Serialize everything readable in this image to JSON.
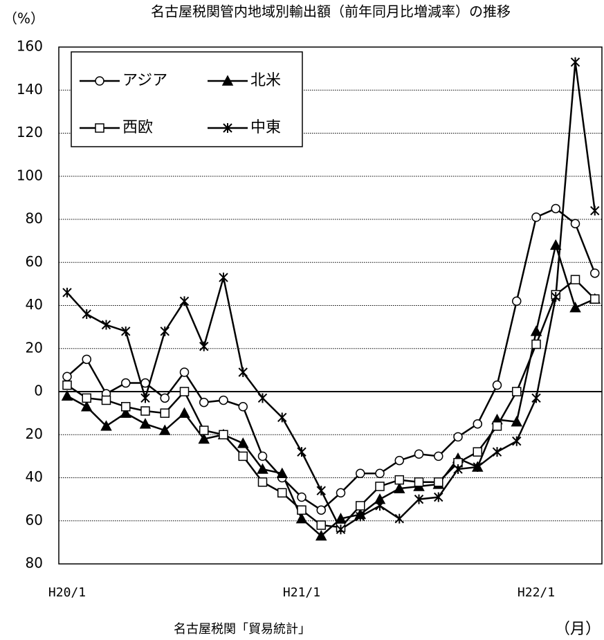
{
  "chart_data": {
    "type": "line",
    "title": "名古屋税関管内地域別輸出額（前年同月比増減率）の推移",
    "y_label": "（%）",
    "x_label": "（月）",
    "source": "名古屋税関「貿易統計」",
    "categories": [
      "H20/1",
      null,
      null,
      null,
      null,
      null,
      null,
      null,
      null,
      null,
      null,
      null,
      "H21/1",
      null,
      null,
      null,
      null,
      null,
      null,
      null,
      null,
      null,
      null,
      null,
      "H22/1",
      null,
      null,
      null
    ],
    "ylim": [
      -80,
      160
    ],
    "yticks": [
      {
        "value": -80,
        "label": "80"
      },
      {
        "value": -60,
        "label": "60"
      },
      {
        "value": -40,
        "label": "40"
      },
      {
        "value": -20,
        "label": "20"
      },
      0,
      20,
      40,
      60,
      80,
      100,
      120,
      140,
      160
    ],
    "grid": true,
    "legend": "upper left",
    "series": [
      {
        "name": "アジア",
        "color": "#000000",
        "marker": "circle",
        "values": [
          7,
          15,
          -1,
          4,
          4,
          -3,
          9,
          -5,
          -4,
          -7,
          -30,
          -40,
          -49,
          -55,
          -47,
          -38,
          -38,
          -32,
          -29,
          -30,
          -21,
          -15,
          3,
          42,
          81,
          85,
          78,
          55
        ]
      },
      {
        "name": "北米",
        "color": "#000000",
        "marker": "triangle",
        "values": [
          -2,
          -7,
          -16,
          -10,
          -15,
          -18,
          -10,
          -22,
          -20,
          -24,
          -36,
          -38,
          -59,
          -67,
          -59,
          -57,
          -50,
          -45,
          -44,
          -43,
          -31,
          -35,
          -13,
          -14,
          28,
          68,
          39,
          43
        ]
      },
      {
        "name": "西欧",
        "color": "#000000",
        "marker": "square",
        "values": [
          3,
          -3,
          -4,
          -7,
          -9,
          -10,
          0,
          -18,
          -20,
          -30,
          -42,
          -47,
          -55,
          -62,
          -63,
          -53,
          -44,
          -41,
          -42,
          -42,
          -33,
          -28,
          -16,
          0,
          22,
          45,
          52,
          43
        ]
      },
      {
        "name": "中東",
        "color": "#000000",
        "marker": "asterisk",
        "values": [
          46,
          36,
          31,
          28,
          -3,
          28,
          42,
          21,
          53,
          9,
          -3,
          -12,
          -28,
          -46,
          -64,
          -58,
          -53,
          -59,
          -50,
          -49,
          -36,
          -35,
          -28,
          -23,
          -3,
          44,
          153,
          84
        ]
      }
    ]
  }
}
